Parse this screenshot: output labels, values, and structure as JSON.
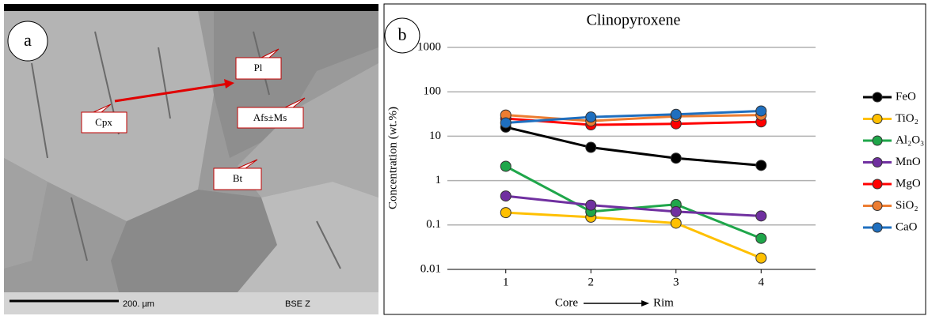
{
  "panel_a": {
    "label": "a",
    "callouts": [
      "Cpx",
      "Pl",
      "Afs±Ms",
      "Bt"
    ],
    "scale_text": "200. µm",
    "detector": "BSE Z"
  },
  "chart_data": {
    "type": "line",
    "panel_label": "b",
    "title": "Clinopyroxene",
    "y_label": "Concentration (wt.%)",
    "x_label_start": "Core",
    "x_label_end": "Rim",
    "categories": [
      "1",
      "2",
      "3",
      "4"
    ],
    "log_scale": true,
    "grid": true,
    "ylim": [
      0.01,
      1000
    ],
    "yticks": [
      0.01,
      0.1,
      1,
      10,
      100,
      1000
    ],
    "legend": "right",
    "series": [
      {
        "name": "FeO",
        "color": "#000000",
        "values": [
          16,
          5.6,
          3.2,
          2.2
        ]
      },
      {
        "name": "TiO₂",
        "color": "#ffc000",
        "values": [
          0.19,
          0.15,
          0.11,
          0.018
        ]
      },
      {
        "name": "Al₂O₃",
        "color": "#1fa64a",
        "values": [
          2.1,
          0.2,
          0.29,
          0.05
        ]
      },
      {
        "name": "MnO",
        "color": "#7030a0",
        "values": [
          0.45,
          0.28,
          0.2,
          0.16
        ]
      },
      {
        "name": "MgO",
        "color": "#ff0000",
        "values": [
          25,
          18,
          19,
          21
        ]
      },
      {
        "name": "SiO₂",
        "color": "#ed7d31",
        "values": [
          30,
          22,
          28,
          30
        ]
      },
      {
        "name": "CaO",
        "color": "#1f6fbf",
        "values": [
          20,
          27,
          31,
          37
        ]
      }
    ]
  }
}
